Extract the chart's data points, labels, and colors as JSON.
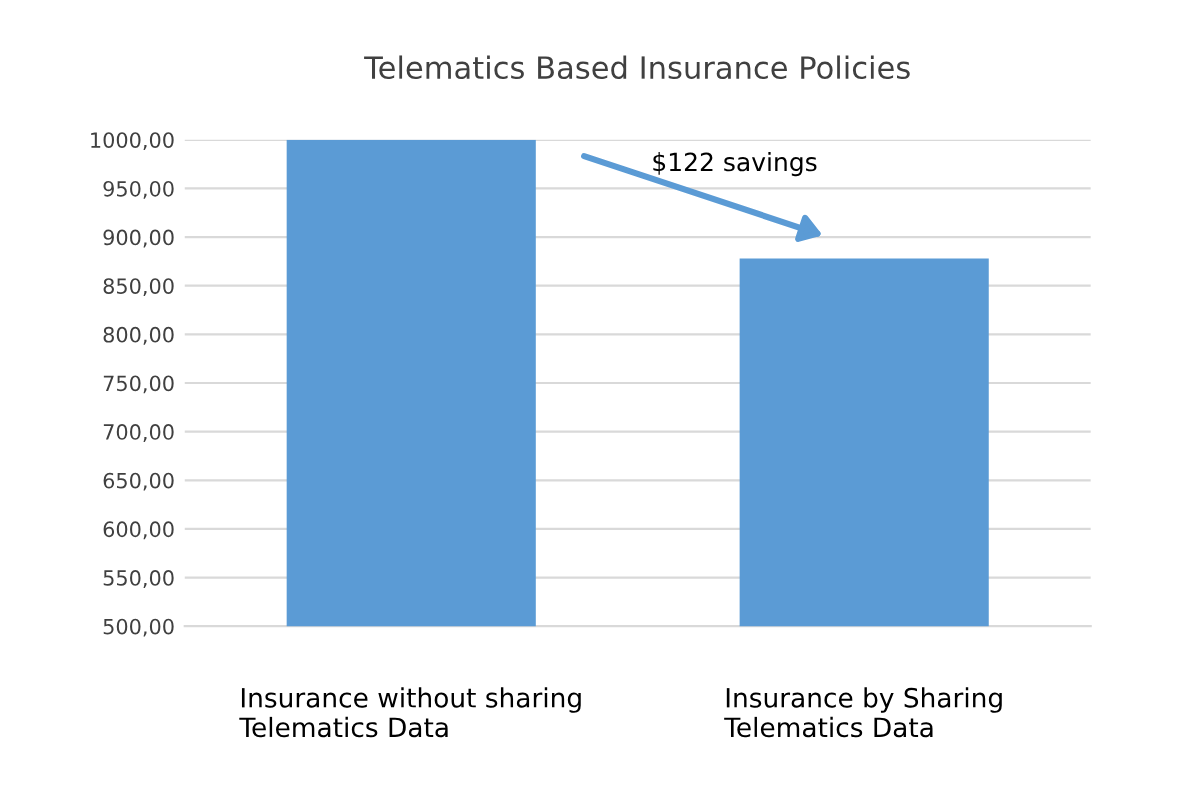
{
  "chart_data": {
    "type": "bar",
    "title": "Telematics Based Insurance Policies",
    "categories": [
      "Insurance without sharing\nTelematics Data",
      "Insurance by Sharing\nTelematics Data"
    ],
    "values": [
      1000,
      878
    ],
    "color": "#5b9bd5",
    "ylim": [
      500,
      1000
    ],
    "yticks": [
      {
        "value": 500,
        "label": "500,00"
      },
      {
        "value": 550,
        "label": "550,00"
      },
      {
        "value": 600,
        "label": "600,00"
      },
      {
        "value": 650,
        "label": "650,00"
      },
      {
        "value": 700,
        "label": "700,00"
      },
      {
        "value": 750,
        "label": "750,00"
      },
      {
        "value": 800,
        "label": "800,00"
      },
      {
        "value": 850,
        "label": "850,00"
      },
      {
        "value": 900,
        "label": "900,00"
      },
      {
        "value": 950,
        "label": "950,00"
      },
      {
        "value": 1000,
        "label": "1000,00"
      }
    ],
    "grid": "y",
    "annotations": [
      "$122 savings"
    ]
  }
}
